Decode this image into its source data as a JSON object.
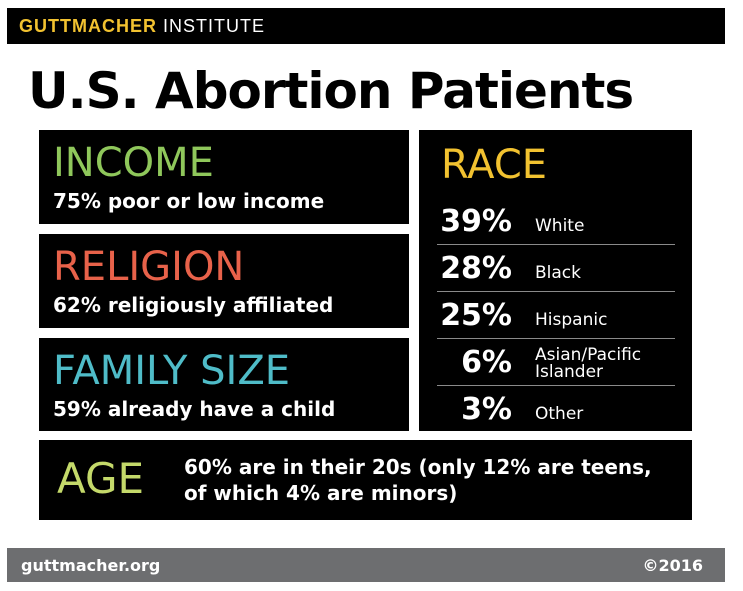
{
  "header": {
    "brand_bold": "GUTTMACHER",
    "brand_light": "INSTITUTE"
  },
  "title": "U.S. Abortion Patients",
  "income": {
    "heading": "INCOME",
    "stat": "75% poor or low income",
    "color": "#8fc75b"
  },
  "religion": {
    "heading": "RELIGION",
    "stat": "62% religiously affiliated",
    "color": "#e8624a"
  },
  "family_size": {
    "heading": "FAMILY SIZE",
    "stat": "59% already have a child",
    "color": "#4fbcc8"
  },
  "race": {
    "heading": "RACE",
    "color": "#f2c230",
    "rows": [
      {
        "pct": "39%",
        "label": "White"
      },
      {
        "pct": "28%",
        "label": "Black"
      },
      {
        "pct": "25%",
        "label": "Hispanic"
      },
      {
        "pct": "6%",
        "label": "Asian/Pacific\nIslander"
      },
      {
        "pct": "3%",
        "label": "Other"
      }
    ]
  },
  "age": {
    "heading": "AGE",
    "color": "#c4d96a",
    "stat": "60% are in their 20s (only 12% are teens, of which 4% are minors)"
  },
  "footer": {
    "url": "guttmacher.org",
    "copyright": "©2016"
  }
}
